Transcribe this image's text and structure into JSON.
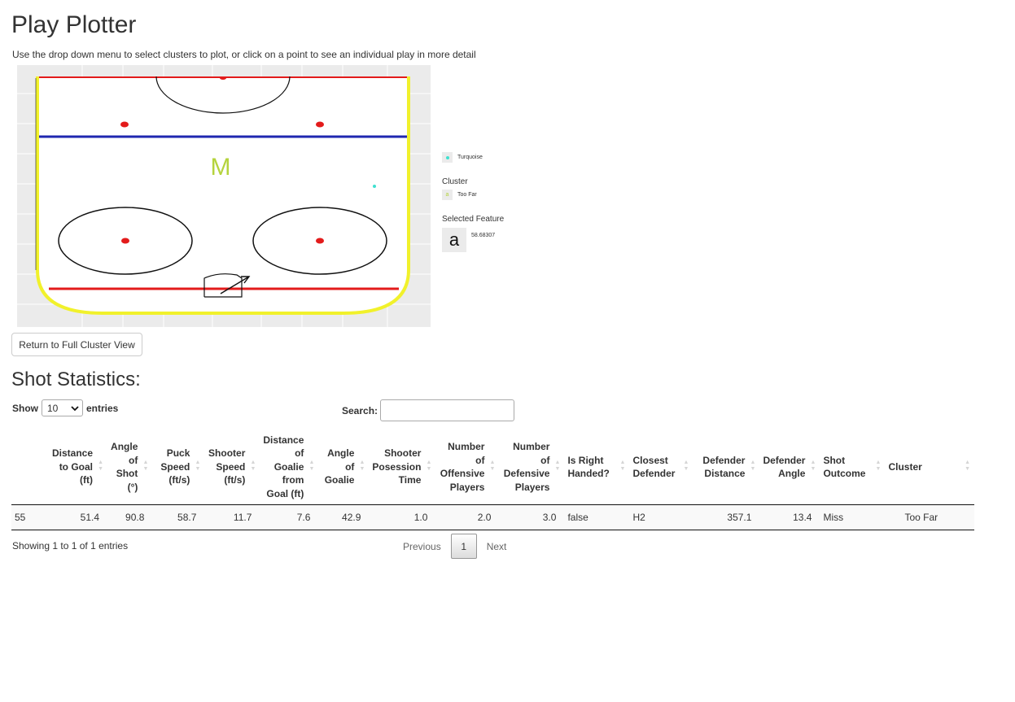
{
  "title": "Play Plotter",
  "subtitle": "Use the drop down menu to select clusters to plot, or click on a point to see an individual play in more detail",
  "plot": {
    "marker_label": "M",
    "accent_colors": {
      "boards": "#f1f12b",
      "red_line": "#e31b1b",
      "blue_line": "#1f27b0",
      "marker": "#b5d33d",
      "point": "#40e0d0"
    },
    "legend": {
      "color_item": "Turquoise",
      "cluster_heading": "Cluster",
      "cluster_swatch": "a",
      "cluster_item": "Too Far",
      "feature_heading": "Selected Feature",
      "feature_swatch": "a",
      "feature_value": "58.68307"
    }
  },
  "return_button": "Return to Full Cluster View",
  "section_title": "Shot Statistics:",
  "controls": {
    "show_label": "Show",
    "entries_value": "10",
    "entries_label": "entries",
    "search_label": "Search:",
    "search_value": ""
  },
  "table": {
    "headers": [
      "",
      "Distance to Goal (ft)",
      "Angle of Shot (°)",
      "Puck Speed (ft/s)",
      "Shooter Speed (ft/s)",
      "Distance of Goalie from Goal (ft)",
      "Angle of Goalie",
      "Shooter Posession Time",
      "Number of Offensive Players",
      "Number of Defensive Players",
      "Is Right Handed?",
      "Closest Defender",
      "Defender Distance",
      "Defender Angle",
      "Shot Outcome",
      "Cluster"
    ],
    "rows": [
      [
        "55",
        "51.4",
        "90.8",
        "58.7",
        "11.7",
        "7.6",
        "42.9",
        "1.0",
        "2.0",
        "3.0",
        "false",
        "H2",
        "357.1",
        "13.4",
        "Miss",
        "Too Far"
      ]
    ]
  },
  "footer": {
    "info": "Showing 1 to 1 of 1 entries",
    "previous": "Previous",
    "current_page": "1",
    "next": "Next"
  }
}
